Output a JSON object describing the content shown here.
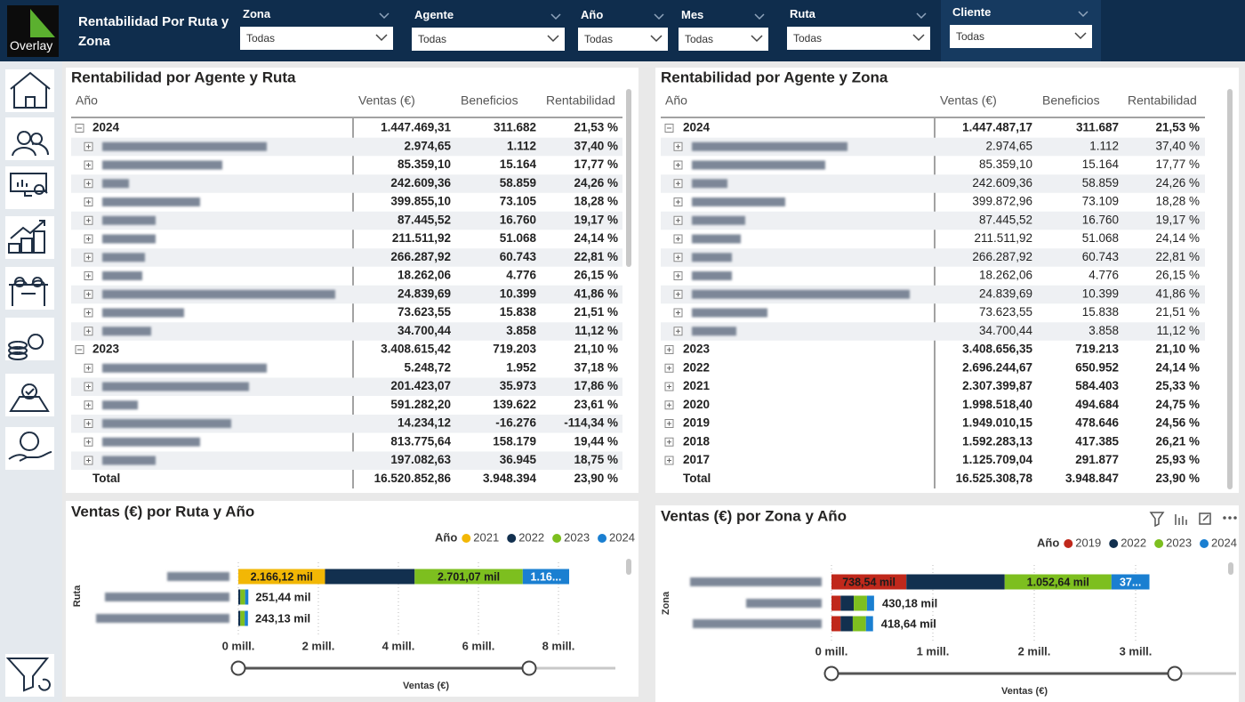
{
  "header": {
    "logo": "Overlay",
    "title": "Rentabilidad Por Ruta y Zona"
  },
  "filters": [
    {
      "label": "Zona",
      "value": "Todas"
    },
    {
      "label": "Agente",
      "value": "Todas"
    },
    {
      "label": "Año",
      "value": "Todas"
    },
    {
      "label": "Mes",
      "value": "Todas"
    },
    {
      "label": "Ruta",
      "value": "Todas"
    },
    {
      "label": "Cliente",
      "value": "Todas"
    }
  ],
  "tables": [
    {
      "title": "Rentabilidad por Agente y Ruta",
      "columns": [
        "Año",
        "Ventas (€)",
        "Beneficios",
        "Rentabilidad"
      ],
      "rows": [
        [
          "2024",
          "1.447.469,31",
          "311.682",
          "21,53 %"
        ],
        [
          null,
          "2.974,65",
          "1.112",
          "37,40 %"
        ],
        [
          null,
          "85.359,10",
          "15.164",
          "17,77 %"
        ],
        [
          null,
          "242.609,36",
          "58.859",
          "24,26 %"
        ],
        [
          null,
          "399.855,10",
          "73.105",
          "18,28 %"
        ],
        [
          null,
          "87.445,52",
          "16.760",
          "19,17 %"
        ],
        [
          null,
          "211.511,92",
          "51.068",
          "24,14 %"
        ],
        [
          null,
          "266.287,92",
          "60.743",
          "22,81 %"
        ],
        [
          null,
          "18.262,06",
          "4.776",
          "26,15 %"
        ],
        [
          null,
          "24.839,69",
          "10.399",
          "41,86 %"
        ],
        [
          null,
          "73.623,55",
          "15.838",
          "21,51 %"
        ],
        [
          null,
          "34.700,44",
          "3.858",
          "11,12 %"
        ],
        [
          "2023",
          "3.408.615,42",
          "719.203",
          "21,10 %"
        ],
        [
          null,
          "5.248,72",
          "1.952",
          "37,18 %"
        ],
        [
          null,
          "201.423,07",
          "35.973",
          "17,86 %"
        ],
        [
          null,
          "591.282,20",
          "139.622",
          "23,61 %"
        ],
        [
          null,
          "14.234,12",
          "-16.276",
          "-114,34 %"
        ],
        [
          null,
          "813.775,64",
          "158.179",
          "19,44 %"
        ],
        [
          null,
          "197.082,63",
          "36.945",
          "18,75 %"
        ],
        [
          "Total",
          "16.520.852,86",
          "3.948.394",
          "23,90 %"
        ]
      ]
    },
    {
      "title": "Rentabilidad por Agente y Zona",
      "columns": [
        "Año",
        "Ventas (€)",
        "Beneficios",
        "Rentabilidad"
      ],
      "rows": [
        [
          "2024",
          "1.447.487,17",
          "311.687",
          "21,53 %"
        ],
        [
          null,
          "2.974,65",
          "1.112",
          "37,40 %"
        ],
        [
          null,
          "85.359,10",
          "15.164",
          "17,77 %"
        ],
        [
          null,
          "242.609,36",
          "58.859",
          "24,26 %"
        ],
        [
          null,
          "399.872,96",
          "73.109",
          "18,28 %"
        ],
        [
          null,
          "87.445,52",
          "16.760",
          "19,17 %"
        ],
        [
          null,
          "211.511,92",
          "51.068",
          "24,14 %"
        ],
        [
          null,
          "266.287,92",
          "60.743",
          "22,81 %"
        ],
        [
          null,
          "18.262,06",
          "4.776",
          "26,15 %"
        ],
        [
          null,
          "24.839,69",
          "10.399",
          "41,86 %"
        ],
        [
          null,
          "73.623,55",
          "15.838",
          "21,51 %"
        ],
        [
          null,
          "34.700,44",
          "3.858",
          "11,12 %"
        ],
        [
          "2023",
          "3.408.656,35",
          "719.213",
          "21,10 %"
        ],
        [
          "2022",
          "2.696.244,67",
          "650.952",
          "24,14 %"
        ],
        [
          "2021",
          "2.307.399,87",
          "584.403",
          "25,33 %"
        ],
        [
          "2020",
          "1.998.518,40",
          "494.684",
          "24,75 %"
        ],
        [
          "2019",
          "1.949.010,15",
          "478.646",
          "24,56 %"
        ],
        [
          "2018",
          "1.592.283,13",
          "417.385",
          "26,21 %"
        ],
        [
          "2017",
          "1.125.709,04",
          "291.877",
          "25,93 %"
        ],
        [
          "Total",
          "16.525.308,78",
          "3.948.847",
          "23,90 %"
        ]
      ]
    }
  ],
  "chart_data": [
    {
      "type": "bar",
      "orientation": "horizontal",
      "stacked": true,
      "title": "Ventas (€) por Ruta y Año",
      "x_label": "Ventas (€)",
      "y_label": "Ruta",
      "legend_title": "Año",
      "categories": [
        null,
        null,
        null
      ],
      "series": [
        {
          "name": "2021",
          "color": "#f2b705",
          "values": [
            2.16612,
            null,
            null
          ],
          "value_labels": [
            "2.166,12 mil",
            null,
            null
          ]
        },
        {
          "name": "2022",
          "color": "#12304f",
          "values": [
            2.24,
            0.05,
            0.05
          ],
          "value_labels": [
            null,
            null,
            null
          ]
        },
        {
          "name": "2023",
          "color": "#7dbf1f",
          "values": [
            2.70107,
            0.12,
            0.11
          ],
          "value_labels": [
            "2.701,07 mil",
            null,
            null
          ]
        },
        {
          "name": "2024",
          "color": "#1a7fd1",
          "values": [
            1.16,
            0.08,
            0.08
          ],
          "value_labels": [
            "1.16...",
            null,
            null
          ]
        }
      ],
      "totals": [
        null,
        0.25144,
        0.24313
      ],
      "totals_labels": [
        null,
        "251,44 mil",
        "243,13 mil"
      ],
      "xlim": [
        0,
        9.8
      ],
      "xticks": [
        {
          "value": 0,
          "label": "0 mill."
        },
        {
          "value": 2,
          "label": "2 mill."
        },
        {
          "value": 4,
          "label": "4 mill."
        },
        {
          "value": 6,
          "label": "6 mill."
        },
        {
          "value": 8,
          "label": "8 mill."
        }
      ],
      "grid": true
    },
    {
      "type": "bar",
      "orientation": "horizontal",
      "stacked": true,
      "title": "Ventas (€) por Zona y Año",
      "x_label": "Ventas (€)",
      "y_label": "Zona",
      "legend_title": "Año",
      "categories": [
        null,
        null,
        null
      ],
      "series": [
        {
          "name": "2019",
          "color": "#c0281b",
          "values": [
            0.73854,
            0.09,
            0.09
          ],
          "value_labels": [
            "738,54 mil",
            null,
            null
          ]
        },
        {
          "name": "2022",
          "color": "#12304f",
          "values": [
            0.97,
            0.13,
            0.12
          ],
          "value_labels": [
            null,
            null,
            null
          ]
        },
        {
          "name": "2023",
          "color": "#7dbf1f",
          "values": [
            1.05264,
            0.13,
            0.13
          ],
          "value_labels": [
            "1.052,64 mil",
            null,
            null
          ]
        },
        {
          "name": "2024",
          "color": "#1a7fd1",
          "values": [
            0.375,
            0.07,
            0.07
          ],
          "value_labels": [
            "37...",
            null,
            null
          ]
        }
      ],
      "totals": [
        null,
        0.43018,
        0.41864
      ],
      "totals_labels": [
        null,
        "430,18 mil",
        "418,64 mil"
      ],
      "xlim": [
        0,
        3.5
      ],
      "xticks": [
        {
          "value": 0,
          "label": "0 mill."
        },
        {
          "value": 1,
          "label": "1 mill."
        },
        {
          "value": 2,
          "label": "2 mill."
        },
        {
          "value": 3,
          "label": "3 mill."
        }
      ],
      "grid": true
    }
  ]
}
